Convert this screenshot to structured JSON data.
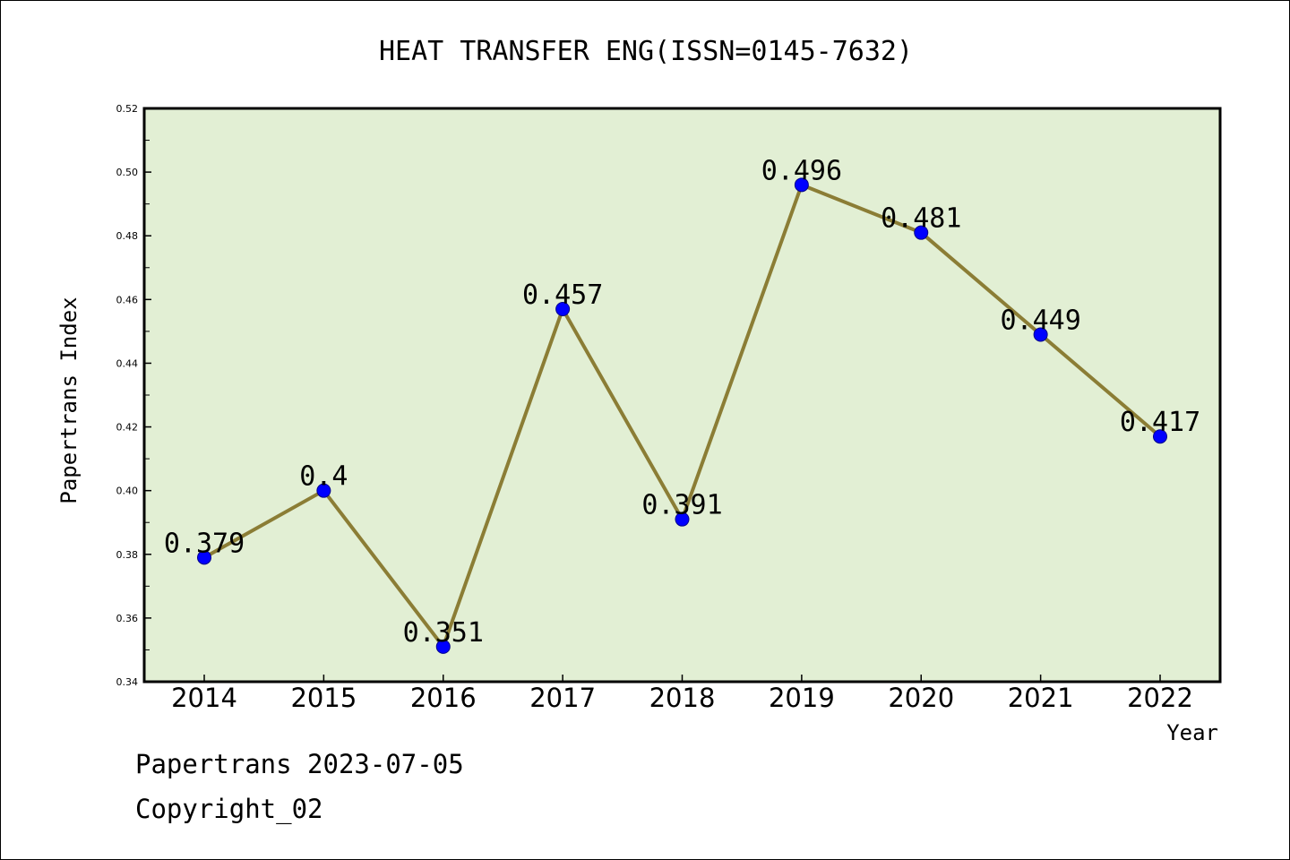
{
  "chart_data": {
    "type": "line",
    "title": "HEAT TRANSFER ENG(ISSN=0145-7632)",
    "xlabel": "Year",
    "ylabel": "Papertrans Index",
    "categories": [
      "2014",
      "2015",
      "2016",
      "2017",
      "2018",
      "2019",
      "2020",
      "2021",
      "2022"
    ],
    "values": [
      0.379,
      0.4,
      0.351,
      0.457,
      0.391,
      0.496,
      0.481,
      0.449,
      0.417
    ],
    "data_labels": [
      "0.379",
      "0.4",
      "0.351",
      "0.457",
      "0.391",
      "0.496",
      "0.481",
      "0.449",
      "0.417"
    ],
    "ylim": [
      0.34,
      0.52
    ],
    "yticks": [
      "0.34",
      "0.36",
      "0.38",
      "0.40",
      "0.42",
      "0.44",
      "0.46",
      "0.48",
      "0.50",
      "0.52"
    ],
    "grid": false,
    "colors": {
      "plot_background": "#e2efd4",
      "line": "#8b7d35",
      "marker": "#0000ff"
    }
  },
  "footer": {
    "line1": "Papertrans 2023-07-05",
    "line2": "Copyright_02"
  }
}
